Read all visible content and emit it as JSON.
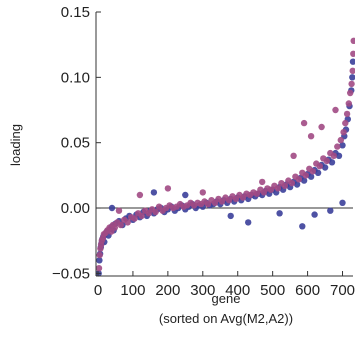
{
  "chart_data": {
    "type": "scatter",
    "title": "",
    "xlabel": "gene",
    "xlabel_line2": "(sorted on Avg(M2,A2))",
    "ylabel": "loading",
    "xlim": [
      0,
      730
    ],
    "ylim": [
      -0.052,
      0.15
    ],
    "x_ticks": [
      0,
      100,
      200,
      300,
      400,
      500,
      600,
      700
    ],
    "x_tick_labels": [
      "0",
      "100",
      "200",
      "300",
      "400",
      "500",
      "600",
      "700"
    ],
    "y_ticks": [
      -0.05,
      0.0,
      0.05,
      0.1,
      0.15
    ],
    "y_tick_labels": [
      "−0.05",
      "0.00",
      "0.05",
      "0.10",
      "0.15"
    ],
    "zero_line": true,
    "grid": false,
    "legend": "none",
    "series": [
      {
        "color": "#3b3f9a",
        "points": [
          [
            2,
            -0.05
          ],
          [
            4,
            -0.04
          ],
          [
            6,
            -0.035
          ],
          [
            8,
            -0.03
          ],
          [
            10,
            -0.027
          ],
          [
            12,
            -0.024
          ],
          [
            15,
            -0.022
          ],
          [
            18,
            -0.026
          ],
          [
            20,
            -0.02
          ],
          [
            25,
            -0.018
          ],
          [
            30,
            -0.021
          ],
          [
            35,
            -0.016
          ],
          [
            40,
            -0.014
          ],
          [
            45,
            -0.017
          ],
          [
            50,
            -0.012
          ],
          [
            60,
            -0.01
          ],
          [
            70,
            -0.013
          ],
          [
            80,
            -0.008
          ],
          [
            90,
            -0.006
          ],
          [
            100,
            -0.009
          ],
          [
            110,
            -0.005
          ],
          [
            120,
            -0.007
          ],
          [
            130,
            -0.003
          ],
          [
            140,
            -0.006
          ],
          [
            150,
            -0.002
          ],
          [
            160,
            -0.004
          ],
          [
            170,
            -0.001
          ],
          [
            180,
            0.0
          ],
          [
            190,
            -0.003
          ],
          [
            200,
            -0.001
          ],
          [
            210,
            0.001
          ],
          [
            220,
            -0.002
          ],
          [
            230,
            0.0
          ],
          [
            240,
            0.002
          ],
          [
            250,
            -0.001
          ],
          [
            260,
            0.001
          ],
          [
            270,
            0.003
          ],
          [
            280,
            0.0
          ],
          [
            290,
            0.002
          ],
          [
            300,
            0.001
          ],
          [
            310,
            0.004
          ],
          [
            320,
            0.002
          ],
          [
            330,
            0.003
          ],
          [
            340,
            0.005
          ],
          [
            350,
            0.003
          ],
          [
            360,
            0.006
          ],
          [
            370,
            0.004
          ],
          [
            380,
            0.007
          ],
          [
            390,
            0.005
          ],
          [
            400,
            0.008
          ],
          [
            410,
            0.006
          ],
          [
            420,
            0.009
          ],
          [
            430,
            0.007
          ],
          [
            440,
            0.01
          ],
          [
            450,
            0.009
          ],
          [
            460,
            0.011
          ],
          [
            470,
            0.01
          ],
          [
            480,
            0.013
          ],
          [
            490,
            0.011
          ],
          [
            500,
            0.014
          ],
          [
            510,
            0.012
          ],
          [
            520,
            0.016
          ],
          [
            530,
            0.014
          ],
          [
            540,
            0.018
          ],
          [
            550,
            0.016
          ],
          [
            560,
            0.02
          ],
          [
            570,
            0.018
          ],
          [
            580,
            0.023
          ],
          [
            590,
            0.021
          ],
          [
            600,
            0.026
          ],
          [
            610,
            0.024
          ],
          [
            620,
            0.029
          ],
          [
            630,
            0.027
          ],
          [
            640,
            0.033
          ],
          [
            650,
            0.031
          ],
          [
            660,
            0.037
          ],
          [
            670,
            0.035
          ],
          [
            680,
            0.042
          ],
          [
            690,
            0.04
          ],
          [
            700,
            0.048
          ],
          [
            705,
            0.055
          ],
          [
            710,
            0.06
          ],
          [
            715,
            0.068
          ],
          [
            720,
            0.078
          ],
          [
            725,
            0.09
          ],
          [
            728,
            0.1
          ],
          [
            730,
            0.112
          ],
          [
            585,
            -0.014
          ],
          [
            620,
            -0.005
          ],
          [
            665,
            -0.002
          ],
          [
            700,
            0.004
          ],
          [
            430,
            -0.011
          ],
          [
            250,
            0.01
          ],
          [
            160,
            0.012
          ],
          [
            40,
            0.0
          ],
          [
            380,
            -0.006
          ],
          [
            520,
            -0.004
          ]
        ]
      },
      {
        "color": "#a14a84",
        "points": [
          [
            3,
            -0.046
          ],
          [
            5,
            -0.036
          ],
          [
            7,
            -0.031
          ],
          [
            9,
            -0.028
          ],
          [
            11,
            -0.025
          ],
          [
            14,
            -0.023
          ],
          [
            17,
            -0.02
          ],
          [
            22,
            -0.019
          ],
          [
            27,
            -0.017
          ],
          [
            33,
            -0.015
          ],
          [
            38,
            -0.018
          ],
          [
            43,
            -0.013
          ],
          [
            48,
            -0.015
          ],
          [
            55,
            -0.011
          ],
          [
            65,
            -0.013
          ],
          [
            75,
            -0.009
          ],
          [
            85,
            -0.011
          ],
          [
            95,
            -0.007
          ],
          [
            105,
            -0.008
          ],
          [
            115,
            -0.004
          ],
          [
            125,
            -0.006
          ],
          [
            135,
            -0.002
          ],
          [
            145,
            -0.004
          ],
          [
            155,
            -0.001
          ],
          [
            165,
            -0.003
          ],
          [
            175,
            0.001
          ],
          [
            185,
            -0.002
          ],
          [
            195,
            0.0
          ],
          [
            205,
            0.002
          ],
          [
            215,
            0.0
          ],
          [
            225,
            0.001
          ],
          [
            235,
            0.003
          ],
          [
            245,
            0.001
          ],
          [
            255,
            0.002
          ],
          [
            265,
            0.004
          ],
          [
            275,
            0.002
          ],
          [
            285,
            0.004
          ],
          [
            295,
            0.003
          ],
          [
            305,
            0.005
          ],
          [
            315,
            0.003
          ],
          [
            325,
            0.006
          ],
          [
            335,
            0.004
          ],
          [
            345,
            0.007
          ],
          [
            355,
            0.005
          ],
          [
            365,
            0.008
          ],
          [
            375,
            0.006
          ],
          [
            385,
            0.009
          ],
          [
            395,
            0.007
          ],
          [
            405,
            0.01
          ],
          [
            415,
            0.008
          ],
          [
            425,
            0.011
          ],
          [
            435,
            0.01
          ],
          [
            445,
            0.012
          ],
          [
            455,
            0.011
          ],
          [
            465,
            0.014
          ],
          [
            475,
            0.012
          ],
          [
            485,
            0.015
          ],
          [
            495,
            0.014
          ],
          [
            505,
            0.017
          ],
          [
            515,
            0.015
          ],
          [
            525,
            0.019
          ],
          [
            535,
            0.017
          ],
          [
            545,
            0.021
          ],
          [
            555,
            0.019
          ],
          [
            565,
            0.024
          ],
          [
            575,
            0.022
          ],
          [
            585,
            0.027
          ],
          [
            595,
            0.025
          ],
          [
            605,
            0.03
          ],
          [
            615,
            0.028
          ],
          [
            625,
            0.034
          ],
          [
            635,
            0.032
          ],
          [
            645,
            0.038
          ],
          [
            655,
            0.036
          ],
          [
            665,
            0.042
          ],
          [
            675,
            0.04
          ],
          [
            685,
            0.047
          ],
          [
            695,
            0.052
          ],
          [
            703,
            0.058
          ],
          [
            708,
            0.065
          ],
          [
            713,
            0.072
          ],
          [
            718,
            0.08
          ],
          [
            722,
            0.088
          ],
          [
            726,
            0.095
          ],
          [
            729,
            0.105
          ],
          [
            731,
            0.118
          ],
          [
            732,
            0.128
          ],
          [
            590,
            0.065
          ],
          [
            610,
            0.055
          ],
          [
            640,
            0.062
          ],
          [
            680,
            0.075
          ],
          [
            200,
            0.015
          ],
          [
            120,
            0.01
          ],
          [
            60,
            -0.002
          ],
          [
            470,
            0.02
          ],
          [
            300,
            0.012
          ],
          [
            560,
            0.04
          ]
        ]
      }
    ]
  }
}
